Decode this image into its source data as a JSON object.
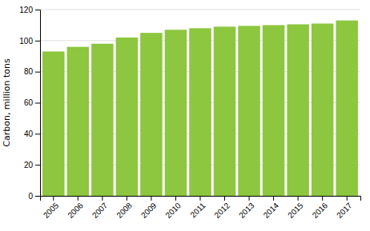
{
  "chart_data": {
    "type": "bar",
    "categories": [
      "2005",
      "2006",
      "2007",
      "2008",
      "2009",
      "2010",
      "2011",
      "2012",
      "2013",
      "2014",
      "2015",
      "2016",
      "2017"
    ],
    "values": [
      93,
      96,
      98,
      102,
      105,
      107,
      108,
      109,
      109.5,
      110,
      110.5,
      111,
      113
    ],
    "color": "#8dc63f",
    "y_label": "Carbon, million tons",
    "ylim": [
      0,
      120
    ],
    "yticks": [
      0,
      20,
      40,
      60,
      80,
      100,
      120
    ],
    "grid": true
  }
}
